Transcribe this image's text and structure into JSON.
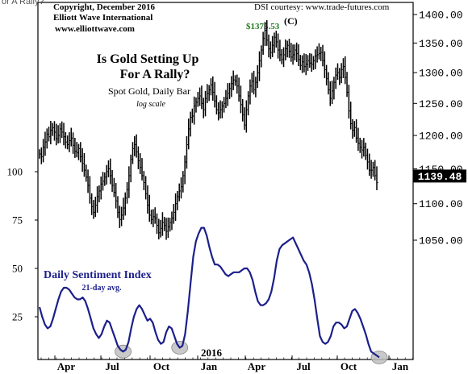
{
  "chart_data": [
    {
      "type": "line",
      "style": "daily-bar-ohlc",
      "title": "Is Gold Setting Up For A Rally?",
      "title_lines": [
        "Is Gold Setting Up",
        "For A Rally?"
      ],
      "subtitle": "Spot Gold, Daily Bar",
      "scale_note": "log scale",
      "scale": "log",
      "ylim": [
        1000,
        1420
      ],
      "yticks": [
        "1400.00",
        "1350.00",
        "1300.00",
        "1250.00",
        "1200.00",
        "1150.00",
        "1100.00",
        "1050.00"
      ],
      "ytick_values": [
        1400,
        1350,
        1300,
        1250,
        1200,
        1150,
        1100,
        1050
      ],
      "last_price_label": "1139.48",
      "last_price": 1139.48,
      "high_label": "$1375.53",
      "high_wave_label": "(C)",
      "high_value": 1375.53,
      "series": [
        {
          "values": [
            1172,
            1168,
            1182,
            1190,
            1202,
            1198,
            1208,
            1212,
            1205,
            1195,
            1200,
            1210,
            1205,
            1198,
            1190,
            1186,
            1192,
            1196,
            1185,
            1176,
            1174,
            1180,
            1168,
            1158,
            1148,
            1138,
            1126,
            1108,
            1096,
            1088,
            1098,
            1110,
            1118,
            1128,
            1132,
            1138,
            1146,
            1150,
            1140,
            1126,
            1116,
            1104,
            1088,
            1078,
            1084,
            1094,
            1108,
            1120,
            1140,
            1164,
            1180,
            1186,
            1175,
            1162,
            1152,
            1140,
            1130,
            1114,
            1098,
            1084,
            1078,
            1082,
            1080,
            1070,
            1060,
            1066,
            1074,
            1070,
            1062,
            1068,
            1074,
            1080,
            1088,
            1100,
            1110,
            1118,
            1124,
            1140,
            1160,
            1186,
            1210,
            1228,
            1230,
            1246,
            1252,
            1258,
            1262,
            1250,
            1240,
            1258,
            1266,
            1272,
            1280,
            1268,
            1254,
            1240,
            1235,
            1240,
            1246,
            1250,
            1258,
            1266,
            1274,
            1282,
            1288,
            1286,
            1278,
            1262,
            1248,
            1232,
            1216,
            1240,
            1262,
            1278,
            1286,
            1272,
            1284,
            1300,
            1320,
            1338,
            1358,
            1372,
            1355,
            1340,
            1334,
            1346,
            1360,
            1352,
            1338,
            1330,
            1322,
            1330,
            1340,
            1346,
            1336,
            1326,
            1330,
            1338,
            1332,
            1322,
            1312,
            1318,
            1310,
            1314,
            1320,
            1316,
            1314,
            1320,
            1328,
            1330,
            1332,
            1334,
            1320,
            1305,
            1290,
            1272,
            1258,
            1270,
            1284,
            1296,
            1300,
            1292,
            1305,
            1310,
            1292,
            1268,
            1238,
            1218,
            1208,
            1212,
            1196,
            1188,
            1182,
            1178,
            1182,
            1170,
            1160,
            1148,
            1148,
            1152,
            1140,
            1130
          ]
        }
      ]
    },
    {
      "type": "line",
      "title": "Daily Sentiment Index",
      "subtitle": "21-day avg.",
      "ylim": [
        0,
        92
      ],
      "yticks": [
        "100",
        "75",
        "50",
        "25"
      ],
      "ytick_values": [
        100,
        75,
        50,
        25
      ],
      "series": [
        {
          "values": [
            30,
            25,
            21,
            19,
            20,
            24,
            29,
            34,
            38,
            40,
            40,
            39,
            37,
            35,
            34,
            34,
            35,
            33,
            29,
            24,
            19,
            16,
            14,
            16,
            20,
            23,
            22,
            18,
            14,
            10,
            8,
            7,
            8,
            12,
            19,
            25,
            29,
            31,
            29,
            26,
            23,
            24,
            22,
            17,
            13,
            11,
            12,
            17,
            20,
            19,
            15,
            11,
            9,
            10,
            16,
            28,
            42,
            56,
            64,
            68,
            71,
            71,
            67,
            61,
            56,
            52,
            52,
            51,
            49,
            47,
            46,
            47,
            48,
            48,
            48,
            49,
            50,
            50,
            48,
            44,
            38,
            33,
            31,
            31,
            32,
            34,
            38,
            45,
            54,
            60,
            62,
            63,
            64,
            65,
            66,
            63,
            60,
            57,
            54,
            52,
            48,
            42,
            34,
            24,
            15,
            12,
            11,
            12,
            15,
            20,
            22,
            22,
            21,
            19,
            20,
            24,
            28,
            29,
            27,
            24,
            20,
            16,
            11,
            7,
            6,
            5,
            4
          ]
        }
      ]
    }
  ],
  "axis": {
    "x_labels": [
      "Apr",
      "Jul",
      "Oct",
      "Jan",
      "Apr",
      "Jul",
      "Oct",
      "Jan"
    ],
    "year_label": "2016"
  },
  "header": {
    "copyright": "Copyright, December 2016",
    "publisher": "Elliott Wave International",
    "website": "www.elliottwave.com",
    "dsi_courtesy": "DSI courtesy: www.trade-futures.com",
    "cropped_title": "or A Rally?"
  },
  "colors": {
    "price": "#000000",
    "sentiment": "#1c1f8a",
    "high_label": "#1d7a1d",
    "highlight_fill": "#c0c0c0"
  }
}
